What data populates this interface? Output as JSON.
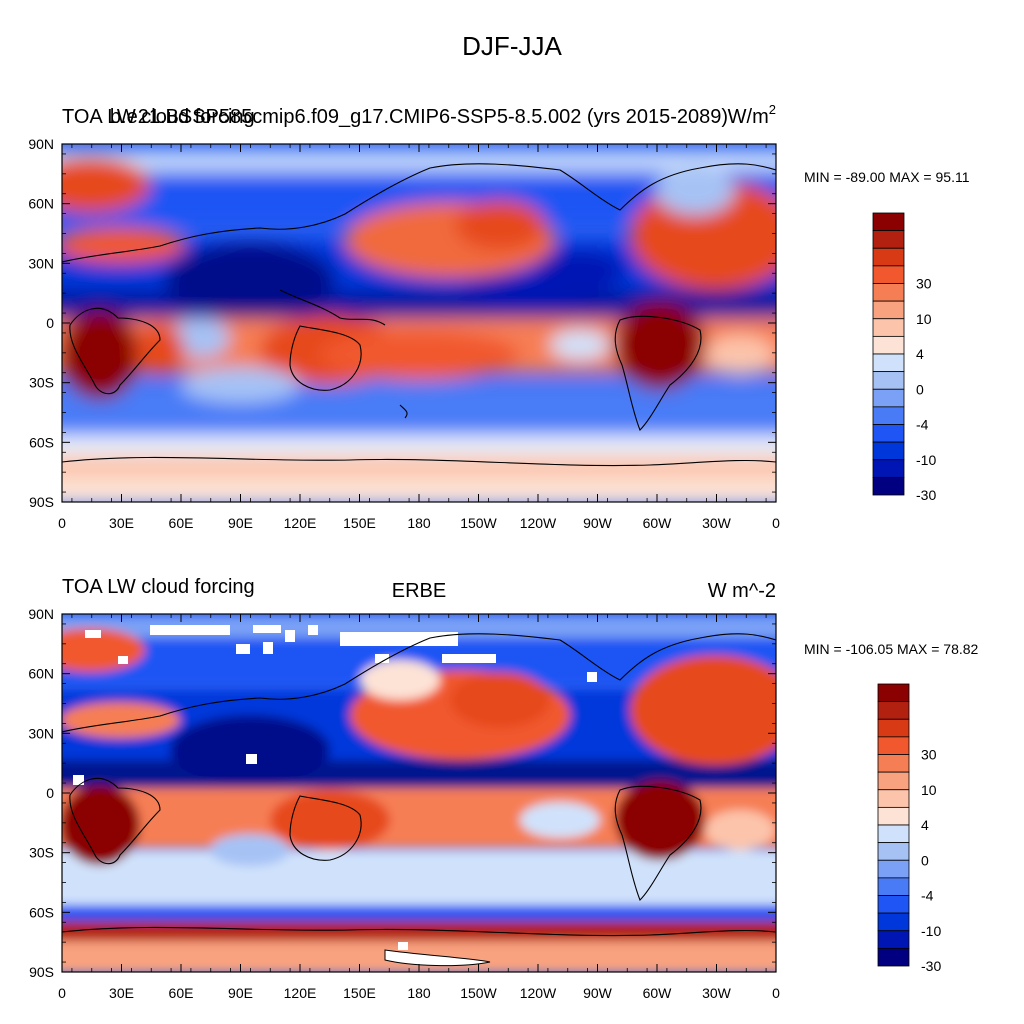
{
  "figure": {
    "title": "DJF-JJA"
  },
  "colorbar": {
    "colors": [
      "#000080",
      "#0016b4",
      "#0037db",
      "#1e55f4",
      "#4a7bf7",
      "#7aa1f6",
      "#a6c2f5",
      "#d0e2fb",
      "#fde3d6",
      "#fcc4ab",
      "#f9a27f",
      "#f67e55",
      "#f1582e",
      "#d93a16",
      "#b22010",
      "#8b0000"
    ],
    "labels": [
      {
        "slot": 4,
        "text": "30"
      },
      {
        "slot": 6,
        "text": "10"
      },
      {
        "slot": 8,
        "text": "4"
      },
      {
        "slot": 10,
        "text": "0"
      },
      {
        "slot": 12,
        "text": "-4"
      },
      {
        "slot": 14,
        "text": "-10"
      },
      {
        "slot": 16,
        "text": "-30"
      }
    ]
  },
  "chart_data": [
    {
      "type": "heatmap",
      "title_left": "TOA LW cloud forcing",
      "title_center": "b.e21.BSSP585cmip6.f09_g17.CMIP6-SSP5-8.5.002 (yrs 2015-2089)",
      "units": "W/m",
      "units_sup": "2",
      "stats": "MIN = -89.00 MAX =  95.11",
      "xlim": [
        0,
        360
      ],
      "ylim": [
        -90,
        90
      ],
      "x_ticks": [
        "0",
        "30E",
        "60E",
        "90E",
        "120E",
        "150E",
        "180",
        "150W",
        "120W",
        "90W",
        "60W",
        "30W",
        "0"
      ],
      "y_ticks": [
        "90N",
        "60N",
        "30N",
        "0",
        "30S",
        "60S",
        "90S"
      ],
      "colorbar_labels": [
        "30",
        "10",
        "4",
        "0",
        "-4",
        "-10",
        "-30"
      ]
    },
    {
      "type": "heatmap",
      "title_left": "TOA LW cloud forcing",
      "title_center": "ERBE",
      "units": "W m^-2",
      "stats": "MIN = -106.05 MAX =  78.82",
      "xlim": [
        0,
        360
      ],
      "ylim": [
        -90,
        90
      ],
      "x_ticks": [
        "0",
        "30E",
        "60E",
        "90E",
        "120E",
        "150E",
        "180",
        "150W",
        "120W",
        "90W",
        "60W",
        "30W",
        "0"
      ],
      "y_ticks": [
        "90N",
        "60N",
        "30N",
        "0",
        "30S",
        "60S",
        "90S"
      ],
      "colorbar_labels": [
        "30",
        "10",
        "4",
        "0",
        "-4",
        "-10",
        "-30"
      ]
    }
  ]
}
